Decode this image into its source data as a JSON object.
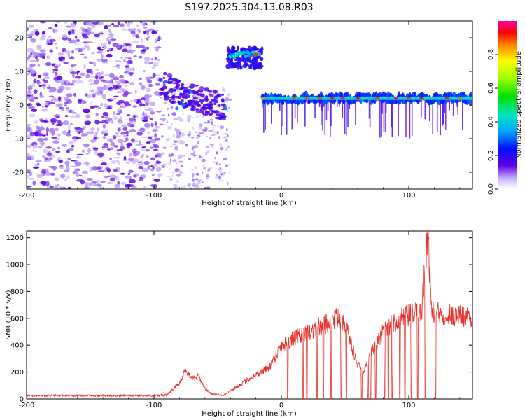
{
  "title": "S197.2025.304.13.08.R03",
  "chart_data": [
    {
      "type": "heatmap",
      "xlabel": "Height of straight line (km)",
      "ylabel": "Frequency (Hz)",
      "xlim": [
        -200,
        150
      ],
      "ylim": [
        -25,
        25
      ],
      "x_ticks": [
        "-200",
        "-100",
        "0",
        "100"
      ],
      "y_ticks": [
        "-20",
        "-10",
        "0",
        "10",
        "20"
      ],
      "colorbar": {
        "label": "Normalized spectral amplitude",
        "range": [
          0,
          1
        ],
        "ticks": [
          "0.0",
          "0.2",
          "0.4",
          "0.6",
          "0.8"
        ]
      },
      "features": [
        {
          "region": "diffuse noise",
          "x_range": [
            -200,
            -95
          ],
          "f_range": [
            -25,
            25
          ],
          "amplitude": 0.05
        },
        {
          "region": "sparse noise",
          "x_range": [
            -95,
            -40
          ],
          "f_range": [
            -25,
            5
          ],
          "amplitude": 0.03
        },
        {
          "region": "streak",
          "x_range": [
            -95,
            -45
          ],
          "f_range": [
            -5,
            8
          ],
          "amplitude": 0.35
        },
        {
          "region": "streak",
          "x_range": [
            -42,
            -15
          ],
          "f_range": [
            11,
            18
          ],
          "amplitude": 0.7
        },
        {
          "region": "line",
          "x_range": [
            -15,
            150
          ],
          "frequency": 2,
          "amplitude": 0.75
        }
      ]
    },
    {
      "type": "line",
      "xlabel": "Height of straight line (km)",
      "ylabel": "SNR (10 * v/v)",
      "xlim": [
        -200,
        150
      ],
      "ylim": [
        0,
        1250
      ],
      "x_ticks": [
        "-200",
        "-100",
        "0",
        "100"
      ],
      "y_ticks": [
        "0",
        "200",
        "400",
        "600",
        "800",
        "1000",
        "1200"
      ],
      "color": "#e8302a",
      "trend": [
        [
          -200,
          25
        ],
        [
          -100,
          25
        ],
        [
          -90,
          30
        ],
        [
          -80,
          120
        ],
        [
          -75,
          220
        ],
        [
          -70,
          150
        ],
        [
          -65,
          170
        ],
        [
          -60,
          80
        ],
        [
          -55,
          35
        ],
        [
          -45,
          30
        ],
        [
          -30,
          120
        ],
        [
          -20,
          180
        ],
        [
          -10,
          230
        ],
        [
          0,
          400
        ],
        [
          10,
          450
        ],
        [
          20,
          480
        ],
        [
          30,
          540
        ],
        [
          40,
          580
        ],
        [
          45,
          620
        ],
        [
          50,
          560
        ],
        [
          55,
          400
        ],
        [
          60,
          250
        ],
        [
          65,
          200
        ],
        [
          70,
          330
        ],
        [
          80,
          500
        ],
        [
          90,
          580
        ],
        [
          100,
          620
        ],
        [
          110,
          650
        ],
        [
          115,
          1250
        ],
        [
          118,
          640
        ],
        [
          130,
          630
        ],
        [
          140,
          620
        ],
        [
          150,
          610
        ]
      ],
      "dropouts_x": [
        5,
        17,
        20,
        28,
        33,
        39,
        47,
        51,
        63,
        68,
        70,
        74,
        81,
        84,
        87,
        93,
        97,
        102,
        107,
        113,
        121
      ]
    }
  ]
}
